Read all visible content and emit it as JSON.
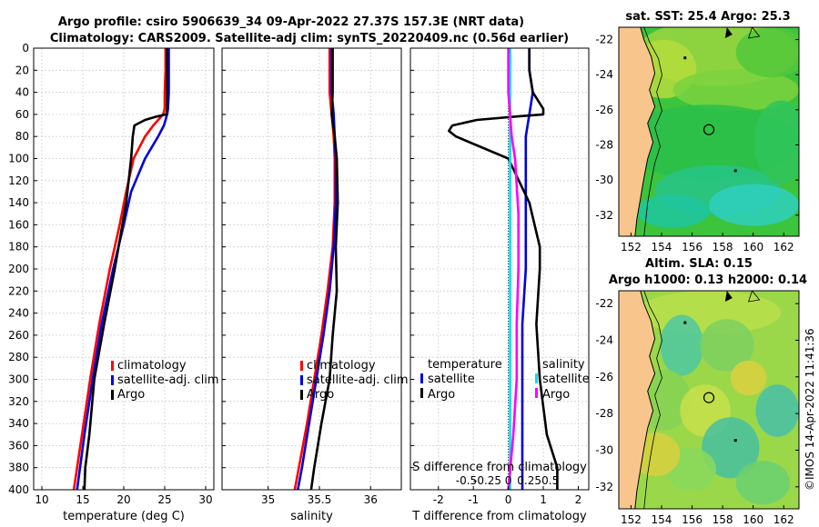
{
  "title": {
    "line1": "Argo profile: csiro 5906639_34 09-Apr-2022 27.37S 157.3E (NRT data)",
    "line2": "Climatology: CARS2009. Satellite-adj clim: synTS_20220409.nc (0.56d earlier)"
  },
  "colors": {
    "climatology": "#ff0000",
    "satellite": "#0000dd",
    "argo": "#000000",
    "t_diff": "#ff00ff",
    "s_diff": "#00e0ee",
    "land": "#f8c58c"
  },
  "depth_ticks": [
    "0",
    "20",
    "40",
    "60",
    "80",
    "100",
    "120",
    "140",
    "160",
    "180",
    "200",
    "220",
    "240",
    "260",
    "280",
    "300",
    "320",
    "340",
    "360",
    "380",
    "400"
  ],
  "chart_data": [
    {
      "type": "line",
      "id": "temperature",
      "xlabel": "temperature (deg C)",
      "ylabel": "depth",
      "xlim": [
        9,
        31
      ],
      "ylim": [
        400,
        0
      ],
      "xticks": [
        "10",
        "15",
        "20",
        "25",
        "30"
      ],
      "legend": [
        "climatology",
        "satellite-adj. clim",
        "Argo"
      ],
      "legend_position": "lower-right",
      "series": [
        {
          "name": "climatology",
          "color": "#ff0000",
          "depth": [
            0,
            20,
            40,
            55,
            60,
            70,
            80,
            100,
            130,
            160,
            200,
            250,
            300,
            350,
            400
          ],
          "values": [
            25.1,
            25.1,
            25.0,
            25.0,
            24.8,
            23.6,
            22.6,
            21.2,
            20.3,
            19.5,
            18.3,
            17.0,
            15.9,
            14.9,
            13.9
          ]
        },
        {
          "name": "satellite-adj. clim",
          "color": "#0000dd",
          "depth": [
            0,
            20,
            40,
            55,
            60,
            70,
            80,
            100,
            130,
            160,
            200,
            250,
            300,
            350,
            400
          ],
          "values": [
            25.5,
            25.5,
            25.5,
            25.4,
            25.3,
            24.9,
            24.2,
            22.6,
            20.9,
            20.0,
            18.7,
            17.3,
            16.2,
            15.2,
            14.3
          ]
        },
        {
          "name": "Argo",
          "color": "#000000",
          "depth": [
            0,
            20,
            40,
            55,
            60,
            62,
            65,
            70,
            80,
            100,
            140,
            200,
            250,
            300,
            350,
            380,
            400
          ],
          "values": [
            25.3,
            25.3,
            25.3,
            25.3,
            25.2,
            24.0,
            22.6,
            21.3,
            21.1,
            20.9,
            20.3,
            18.9,
            17.6,
            16.4,
            15.8,
            15.3,
            15.2
          ]
        }
      ]
    },
    {
      "type": "line",
      "id": "salinity",
      "xlabel": "salinity",
      "ylabel": "depth",
      "xlim": [
        34.55,
        36.3
      ],
      "ylim": [
        400,
        0
      ],
      "xticks": [
        "35",
        "35.5",
        "36"
      ],
      "legend": [
        "climatology",
        "satellite-adj. clim",
        "Argo"
      ],
      "legend_position": "lower-right",
      "series": [
        {
          "name": "climatology",
          "color": "#ff0000",
          "depth": [
            0,
            40,
            60,
            80,
            100,
            140,
            180,
            220,
            260,
            300,
            340,
            380,
            400
          ],
          "values": [
            35.6,
            35.6,
            35.62,
            35.64,
            35.65,
            35.65,
            35.63,
            35.58,
            35.52,
            35.45,
            35.38,
            35.3,
            35.26
          ]
        },
        {
          "name": "satellite-adj. clim",
          "color": "#0000dd",
          "depth": [
            0,
            40,
            60,
            80,
            100,
            140,
            180,
            220,
            260,
            300,
            340,
            380,
            400
          ],
          "values": [
            35.62,
            35.62,
            35.64,
            35.65,
            35.66,
            35.66,
            35.64,
            35.6,
            35.54,
            35.47,
            35.4,
            35.33,
            35.29
          ]
        },
        {
          "name": "Argo",
          "color": "#000000",
          "depth": [
            0,
            40,
            60,
            80,
            100,
            140,
            180,
            220,
            260,
            300,
            340,
            380,
            400
          ],
          "values": [
            35.63,
            35.63,
            35.62,
            35.65,
            35.67,
            35.68,
            35.66,
            35.67,
            35.63,
            35.6,
            35.52,
            35.45,
            35.42
          ]
        }
      ]
    },
    {
      "type": "line",
      "id": "difference",
      "xlabel": "T difference from climatology",
      "xlabel_top": "S difference from climatology",
      "ylabel": "depth",
      "xlim": [
        -2.8,
        2.3
      ],
      "ylim": [
        400,
        0
      ],
      "xticks": [
        "-2",
        "-1",
        "0",
        "1",
        "2"
      ],
      "s_xticks": [
        "-0.5",
        "-0.25",
        "0",
        "0.25",
        "0.5"
      ],
      "legend_temperature": [
        "temperature",
        "satellite",
        "Argo"
      ],
      "legend_salinity": [
        "salinity",
        "satellite",
        "Argo"
      ],
      "legend_position": "lower",
      "series": [
        {
          "name": "T satellite",
          "color": "#0000dd",
          "depth": [
            0,
            20,
            40,
            60,
            80,
            100,
            150,
            200,
            250,
            300,
            350,
            400
          ],
          "values": [
            0.6,
            0.6,
            0.7,
            0.6,
            0.5,
            0.5,
            0.5,
            0.5,
            0.4,
            0.4,
            0.4,
            0.4
          ]
        },
        {
          "name": "T Argo",
          "color": "#000000",
          "depth": [
            0,
            20,
            40,
            55,
            60,
            62,
            65,
            70,
            75,
            80,
            100,
            140,
            180,
            200,
            250,
            300,
            350,
            380,
            400
          ],
          "values": [
            0.6,
            0.6,
            0.7,
            1.0,
            1.0,
            0.2,
            -0.9,
            -1.6,
            -1.7,
            -1.5,
            0.0,
            0.6,
            0.9,
            0.9,
            0.8,
            0.9,
            1.1,
            1.4,
            1.4
          ]
        },
        {
          "name": "S satellite",
          "color": "#00e0ee",
          "depth": [
            0,
            50,
            100,
            150,
            200,
            250,
            300,
            350,
            400
          ],
          "values": [
            0.02,
            0.02,
            0.02,
            0.02,
            0.02,
            0.02,
            0.02,
            0.02,
            0.02
          ]
        },
        {
          "name": "S Argo",
          "color": "#ff00ff",
          "depth": [
            0,
            40,
            60,
            80,
            100,
            150,
            200,
            250,
            300,
            350,
            400
          ],
          "values": [
            0.0,
            0.0,
            0.02,
            0.04,
            0.08,
            0.12,
            0.12,
            0.1,
            0.1,
            0.06,
            0.0
          ]
        }
      ]
    }
  ],
  "maps": {
    "sst": {
      "title": "sat. SST: 25.4 Argo: 25.3",
      "lon_ticks": [
        "152",
        "154",
        "156",
        "158",
        "160",
        "162"
      ],
      "lat_ticks": [
        "-22",
        "-24",
        "-26",
        "-28",
        "-30",
        "-32"
      ]
    },
    "sla": {
      "title_line1": "Altim. SLA: 0.15",
      "title_line2": "Argo h1000: 0.13 h2000: 0.14",
      "lon_ticks": [
        "152",
        "154",
        "156",
        "158",
        "160",
        "162"
      ],
      "lat_ticks": [
        "-22",
        "-24",
        "-26",
        "-28",
        "-30",
        "-32"
      ]
    }
  },
  "footer": "©IMOS 14-Apr-2022 11:41:36"
}
